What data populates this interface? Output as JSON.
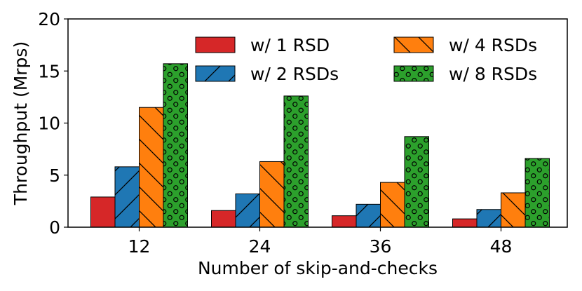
{
  "chart_data": {
    "type": "bar",
    "title": "",
    "xlabel": "Number of skip-and-checks",
    "ylabel": "Throughput (Mrps)",
    "ylim": [
      0,
      20
    ],
    "yticks": [
      "0",
      "5",
      "10",
      "15",
      "20"
    ],
    "categories": [
      "12",
      "24",
      "36",
      "48"
    ],
    "series": [
      {
        "name": "w/ 1 RSD",
        "values": [
          2.9,
          1.6,
          1.1,
          0.8
        ],
        "color": "#d62728",
        "hatch": "none"
      },
      {
        "name": "w/ 2 RSDs",
        "values": [
          5.8,
          3.2,
          2.2,
          1.7
        ],
        "color": "#1f77b4",
        "hatch": "forward-slash"
      },
      {
        "name": "w/ 4 RSDs",
        "values": [
          11.5,
          6.3,
          4.3,
          3.3
        ],
        "color": "#ff7f0e",
        "hatch": "back-slash"
      },
      {
        "name": "w/ 8 RSDs",
        "values": [
          15.7,
          12.6,
          8.7,
          6.6
        ],
        "color": "#2ca02c",
        "hatch": "circles"
      }
    ],
    "legend": "top-right",
    "grid": false
  }
}
